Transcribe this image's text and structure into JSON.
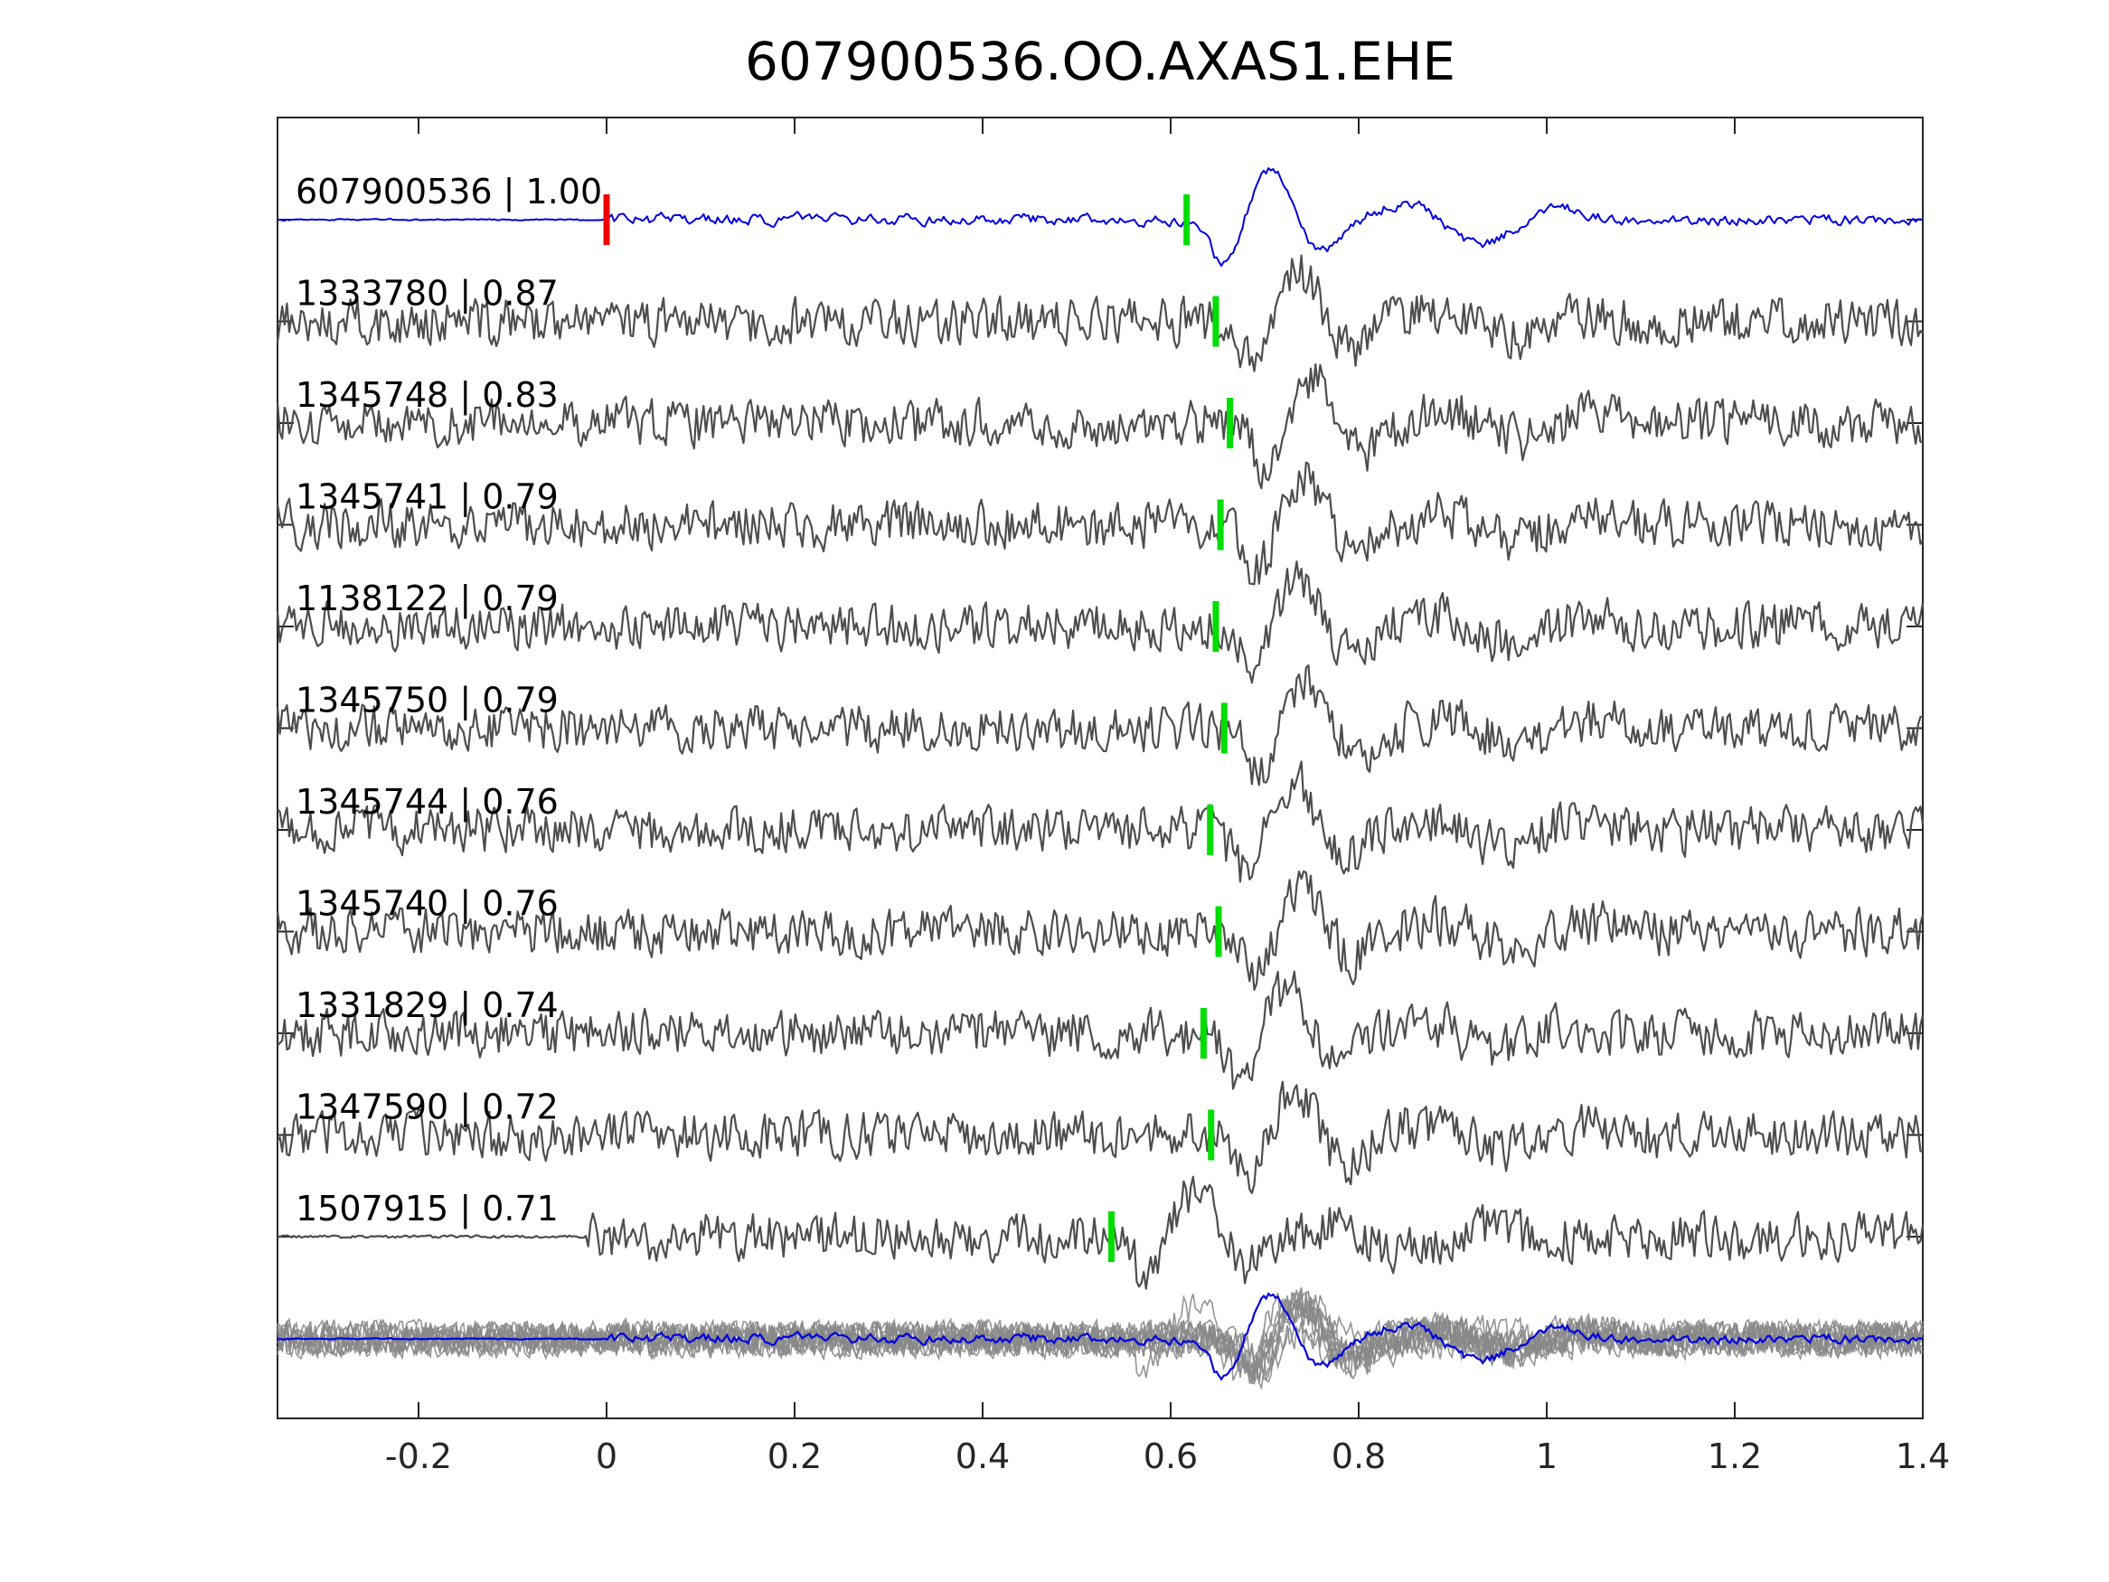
{
  "chart_data": {
    "type": "line",
    "title": "607900536.OO.AXAS1.EHE",
    "xlabel": "",
    "ylabel": "",
    "xlim": [
      -0.35,
      1.4
    ],
    "xticks": [
      -0.2,
      0,
      0.2,
      0.4,
      0.6,
      0.8,
      1,
      1.2,
      1.4
    ],
    "xtick_labels": [
      "-0.2",
      "0",
      "0.2",
      "0.4",
      "0.6",
      "0.8",
      "1",
      "1.2",
      "1.4"
    ],
    "grid": false,
    "colors": {
      "master": "#0000dd",
      "trace": "#4d4d4d",
      "stack": "#888888",
      "master_pick": "#ee0000",
      "pick": "#00dd00",
      "axes": "#262626"
    },
    "series": [
      {
        "name": "607900536 | 1.00",
        "id": "607900536",
        "cc": 1.0,
        "pick": 0.617,
        "master": true
      },
      {
        "name": "1333780 | 0.87",
        "id": "1333780",
        "cc": 0.87,
        "pick": 0.648
      },
      {
        "name": "1345748 | 0.83",
        "id": "1345748",
        "cc": 0.83,
        "pick": 0.663
      },
      {
        "name": "1345741 | 0.79",
        "id": "1345741",
        "cc": 0.79,
        "pick": 0.653
      },
      {
        "name": "1138122 | 0.79",
        "id": "1138122",
        "cc": 0.79,
        "pick": 0.648
      },
      {
        "name": "1345750 | 0.79",
        "id": "1345750",
        "cc": 0.79,
        "pick": 0.657
      },
      {
        "name": "1345744 | 0.76",
        "id": "1345744",
        "cc": 0.76,
        "pick": 0.642
      },
      {
        "name": "1345740 | 0.76",
        "id": "1345740",
        "cc": 0.76,
        "pick": 0.651
      },
      {
        "name": "1331829 | 0.74",
        "id": "1331829",
        "cc": 0.74,
        "pick": 0.635
      },
      {
        "name": "1347590 | 0.72",
        "id": "1347590",
        "cc": 0.72,
        "pick": 0.643
      },
      {
        "name": "1507915 | 0.71",
        "id": "1507915",
        "cc": 0.71,
        "pick": 0.537
      }
    ],
    "master_marker": {
      "x": 0.0
    },
    "stacked_overlay": true
  }
}
